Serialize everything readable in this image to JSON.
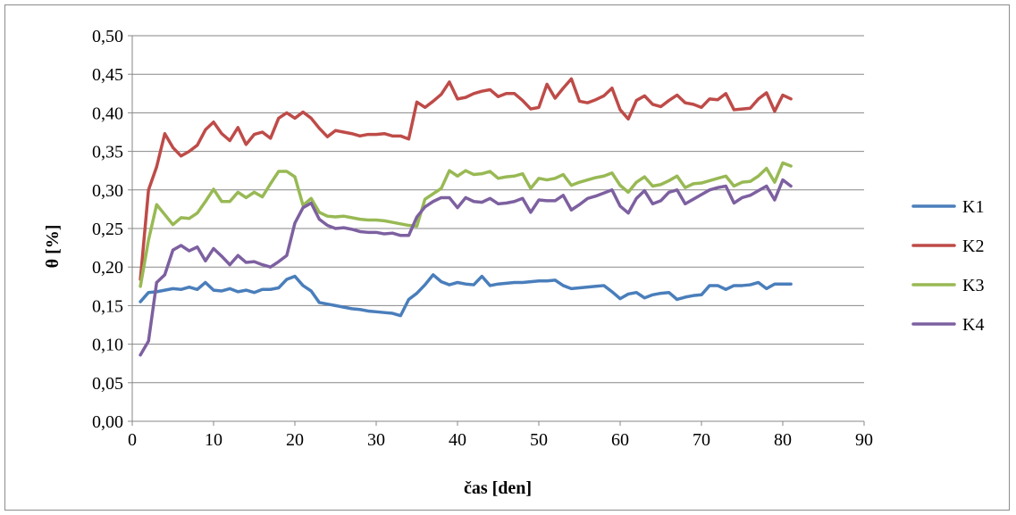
{
  "chart_data": {
    "type": "line",
    "xlabel": "čas [den]",
    "ylabel": "θ [%]",
    "xlim": [
      0,
      90
    ],
    "ylim": [
      0,
      0.5
    ],
    "x_ticks": [
      0,
      10,
      20,
      30,
      40,
      50,
      60,
      70,
      80,
      90
    ],
    "x_tick_labels": [
      "0",
      "10",
      "20",
      "30",
      "40",
      "50",
      "60",
      "70",
      "80",
      "90"
    ],
    "y_ticks": [
      0,
      0.05,
      0.1,
      0.15,
      0.2,
      0.25,
      0.3,
      0.35,
      0.4,
      0.45,
      0.5
    ],
    "y_tick_labels": [
      "0,00",
      "0,05",
      "0,10",
      "0,15",
      "0,20",
      "0,25",
      "0,30",
      "0,35",
      "0,40",
      "0,45",
      "0,50"
    ],
    "grid": "horizontal",
    "legend_position": "right",
    "series": [
      {
        "name": "K1",
        "color": "#4a7ebb",
        "values": [
          0.155,
          0.167,
          0.168,
          0.17,
          0.172,
          0.171,
          0.174,
          0.171,
          0.18,
          0.17,
          0.169,
          0.172,
          0.168,
          0.17,
          0.167,
          0.171,
          0.171,
          0.173,
          0.184,
          0.188,
          0.176,
          0.169,
          0.154,
          0.152,
          0.15,
          0.148,
          0.146,
          0.145,
          0.143,
          0.142,
          0.141,
          0.14,
          0.137,
          0.158,
          0.166,
          0.177,
          0.19,
          0.181,
          0.177,
          0.18,
          0.178,
          0.177,
          0.188,
          0.176,
          0.178,
          0.179,
          0.18,
          0.18,
          0.181,
          0.182,
          0.182,
          0.183,
          0.176,
          0.172,
          0.173,
          0.174,
          0.175,
          0.176,
          0.168,
          0.159,
          0.165,
          0.167,
          0.16,
          0.164,
          0.166,
          0.167,
          0.158,
          0.161,
          0.163,
          0.164,
          0.176,
          0.176,
          0.171,
          0.176,
          0.176,
          0.177,
          0.18,
          0.172,
          0.178,
          0.178,
          0.178
        ]
      },
      {
        "name": "K2",
        "color": "#be4b48",
        "values": [
          0.184,
          0.3,
          0.33,
          0.373,
          0.355,
          0.344,
          0.35,
          0.358,
          0.378,
          0.388,
          0.373,
          0.364,
          0.381,
          0.359,
          0.372,
          0.375,
          0.367,
          0.393,
          0.4,
          0.393,
          0.401,
          0.393,
          0.38,
          0.369,
          0.377,
          0.375,
          0.373,
          0.37,
          0.372,
          0.372,
          0.373,
          0.37,
          0.37,
          0.366,
          0.414,
          0.407,
          0.415,
          0.424,
          0.44,
          0.418,
          0.42,
          0.425,
          0.428,
          0.43,
          0.421,
          0.425,
          0.425,
          0.416,
          0.405,
          0.407,
          0.437,
          0.419,
          0.432,
          0.444,
          0.415,
          0.413,
          0.417,
          0.422,
          0.432,
          0.404,
          0.392,
          0.416,
          0.422,
          0.411,
          0.408,
          0.416,
          0.423,
          0.413,
          0.411,
          0.407,
          0.418,
          0.417,
          0.425,
          0.404,
          0.405,
          0.406,
          0.418,
          0.426,
          0.402,
          0.423,
          0.418
        ]
      },
      {
        "name": "K3",
        "color": "#98b954",
        "values": [
          0.175,
          0.235,
          0.281,
          0.268,
          0.255,
          0.264,
          0.263,
          0.27,
          0.285,
          0.301,
          0.285,
          0.285,
          0.297,
          0.29,
          0.297,
          0.291,
          0.308,
          0.324,
          0.324,
          0.317,
          0.28,
          0.289,
          0.271,
          0.266,
          0.265,
          0.266,
          0.264,
          0.262,
          0.261,
          0.261,
          0.26,
          0.258,
          0.256,
          0.254,
          0.253,
          0.288,
          0.295,
          0.302,
          0.325,
          0.318,
          0.325,
          0.32,
          0.321,
          0.324,
          0.315,
          0.317,
          0.318,
          0.321,
          0.302,
          0.315,
          0.313,
          0.315,
          0.32,
          0.306,
          0.31,
          0.313,
          0.316,
          0.318,
          0.322,
          0.306,
          0.297,
          0.31,
          0.317,
          0.305,
          0.307,
          0.312,
          0.318,
          0.303,
          0.308,
          0.309,
          0.312,
          0.315,
          0.318,
          0.305,
          0.31,
          0.311,
          0.318,
          0.328,
          0.31,
          0.335,
          0.331
        ]
      },
      {
        "name": "K4",
        "color": "#7d60a0",
        "values": [
          0.086,
          0.104,
          0.18,
          0.19,
          0.222,
          0.228,
          0.221,
          0.226,
          0.208,
          0.224,
          0.214,
          0.203,
          0.215,
          0.206,
          0.207,
          0.203,
          0.2,
          0.207,
          0.215,
          0.257,
          0.277,
          0.283,
          0.262,
          0.254,
          0.25,
          0.251,
          0.249,
          0.246,
          0.245,
          0.245,
          0.243,
          0.244,
          0.241,
          0.241,
          0.265,
          0.278,
          0.285,
          0.29,
          0.29,
          0.277,
          0.29,
          0.285,
          0.284,
          0.289,
          0.282,
          0.283,
          0.285,
          0.289,
          0.271,
          0.287,
          0.286,
          0.286,
          0.293,
          0.274,
          0.281,
          0.289,
          0.292,
          0.296,
          0.3,
          0.279,
          0.27,
          0.289,
          0.299,
          0.282,
          0.286,
          0.297,
          0.3,
          0.282,
          0.288,
          0.294,
          0.3,
          0.303,
          0.305,
          0.283,
          0.29,
          0.293,
          0.299,
          0.305,
          0.287,
          0.313,
          0.305
        ]
      }
    ]
  }
}
